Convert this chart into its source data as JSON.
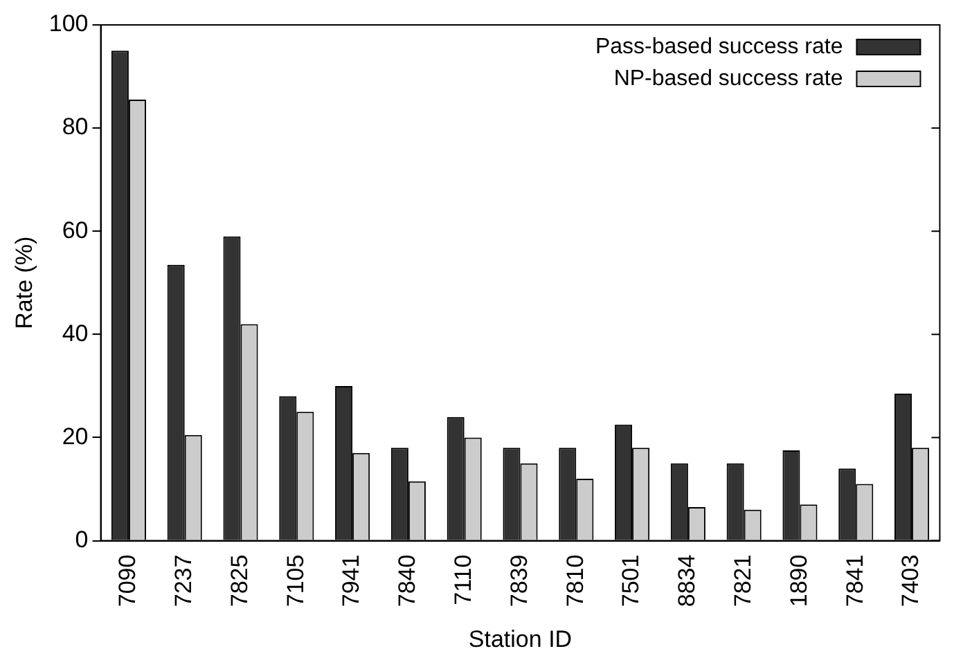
{
  "chart_data": {
    "type": "bar",
    "xlabel": "Station ID",
    "ylabel": "Rate (%)",
    "categories": [
      "7090",
      "7237",
      "7825",
      "7105",
      "7941",
      "7840",
      "7110",
      "7839",
      "7810",
      "7501",
      "8834",
      "7821",
      "1890",
      "7841",
      "7403"
    ],
    "series": [
      {
        "name": "Pass-based success rate",
        "color": "#333333",
        "values": [
          95,
          53.5,
          59,
          28,
          30,
          18,
          24,
          18,
          18,
          22.5,
          15,
          15,
          17.5,
          14,
          28.5
        ]
      },
      {
        "name": "NP-based success rate",
        "color": "#cccccc",
        "values": [
          85.5,
          20.5,
          42,
          25,
          17,
          11.5,
          20,
          15,
          12,
          18,
          6.5,
          6,
          7,
          11,
          18
        ]
      }
    ],
    "ylim": [
      0,
      100
    ],
    "yticks": [
      0,
      20,
      40,
      60,
      80,
      100
    ],
    "grid": false,
    "legend": "top right"
  }
}
